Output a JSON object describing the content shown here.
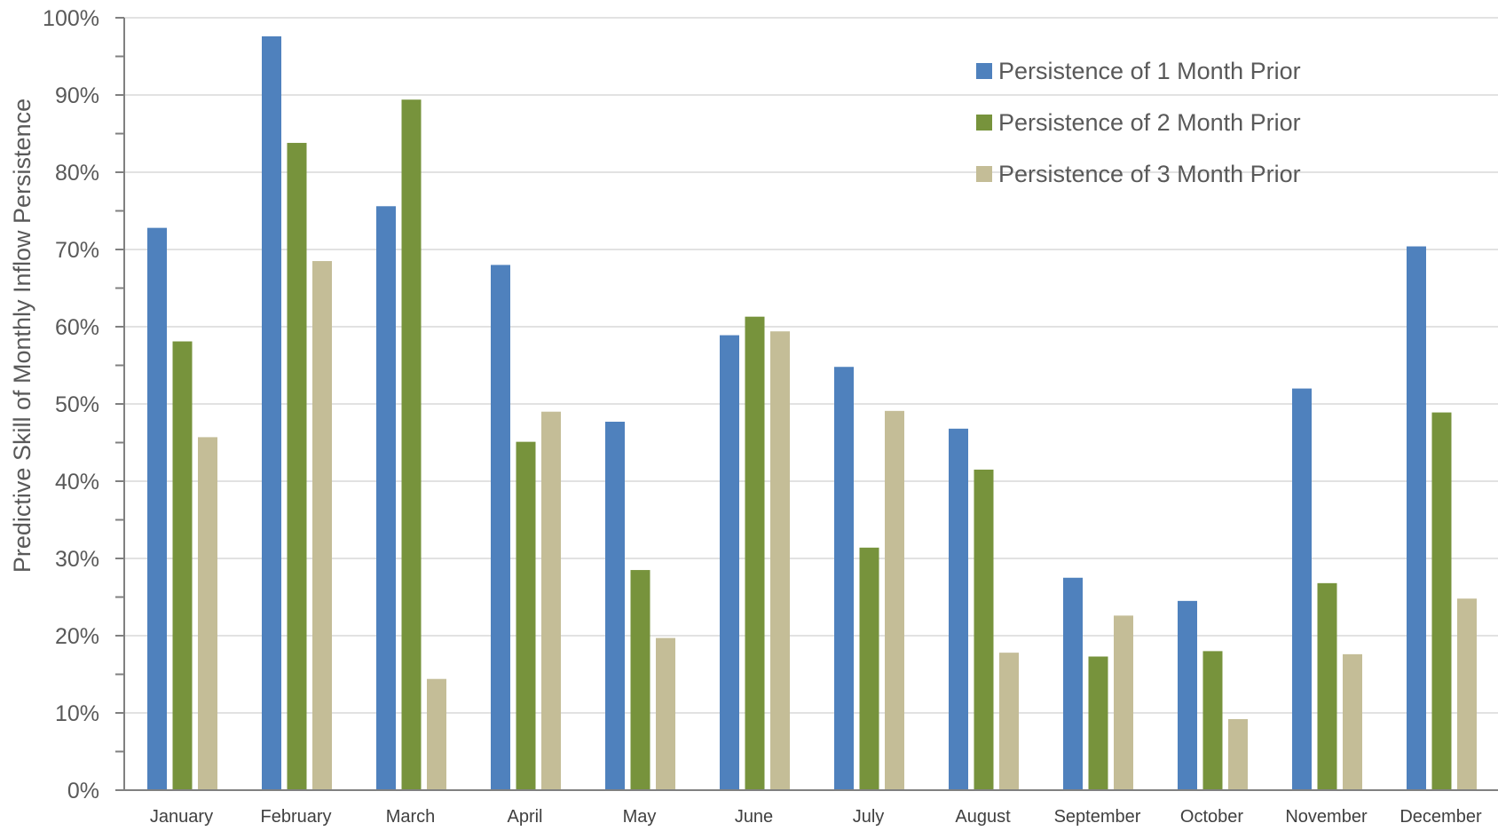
{
  "chart_data": {
    "type": "bar",
    "title": "",
    "xlabel": "",
    "ylabel": "Predictive Skill of Monthly Inflow Persistence",
    "ylim": [
      0,
      100
    ],
    "y_tick_values": [
      0,
      10,
      20,
      30,
      40,
      50,
      60,
      70,
      80,
      90,
      100
    ],
    "y_tick_labels": [
      "0%",
      "10%",
      "20%",
      "30%",
      "40%",
      "50%",
      "60%",
      "70%",
      "80%",
      "90%",
      "100%"
    ],
    "grid": true,
    "legend_position": "top-right",
    "categories": [
      "January",
      "February",
      "March",
      "April",
      "May",
      "June",
      "July",
      "August",
      "September",
      "October",
      "November",
      "December"
    ],
    "series": [
      {
        "name": "Persistence of 1 Month Prior",
        "color": "#4F81BD",
        "values": [
          72.8,
          97.6,
          75.6,
          68.0,
          47.7,
          58.9,
          54.8,
          46.8,
          27.5,
          24.5,
          52.0,
          70.4
        ]
      },
      {
        "name": "Persistence of 2 Month Prior",
        "color": "#77933C",
        "values": [
          58.1,
          83.8,
          89.4,
          45.1,
          28.5,
          61.3,
          31.4,
          41.5,
          17.3,
          18.0,
          26.8,
          48.9
        ]
      },
      {
        "name": "Persistence of 3 Month Prior",
        "color": "#C4BD97",
        "values": [
          45.7,
          68.5,
          14.4,
          49.0,
          19.7,
          59.4,
          49.1,
          17.8,
          22.6,
          9.2,
          17.6,
          24.8
        ]
      }
    ]
  }
}
